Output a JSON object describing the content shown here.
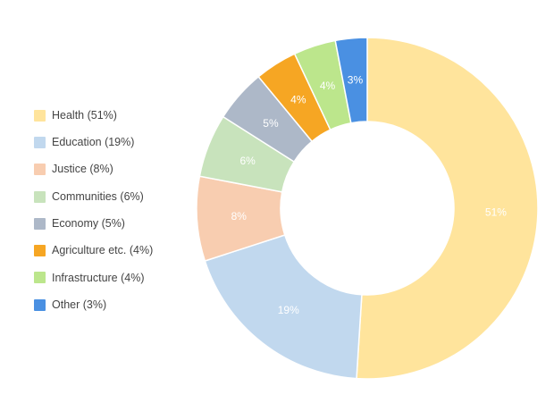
{
  "chart_data": {
    "type": "pie",
    "donut": true,
    "legend_position": "left",
    "slices": [
      {
        "legend": "Health (51%)",
        "label": "51%",
        "value": 51,
        "color": "#FFE49C"
      },
      {
        "legend": "Education (19%)",
        "label": "19%",
        "value": 19,
        "color": "#C1D8EE"
      },
      {
        "legend": "Justice (8%)",
        "label": "8%",
        "value": 8,
        "color": "#F8CDB0"
      },
      {
        "legend": "Communities (6%)",
        "label": "6%",
        "value": 6,
        "color": "#C8E3BC"
      },
      {
        "legend": "Economy (5%)",
        "label": "5%",
        "value": 5,
        "color": "#ADB8C8"
      },
      {
        "legend": "Agriculture etc. (4%)",
        "label": "4%",
        "value": 4,
        "color": "#F6A623"
      },
      {
        "legend": "Infrastructure (4%)",
        "label": "4%",
        "value": 4,
        "color": "#BCE68C"
      },
      {
        "legend": "Other (3%)",
        "label": "3%",
        "value": 3,
        "color": "#4A90E2"
      }
    ]
  }
}
